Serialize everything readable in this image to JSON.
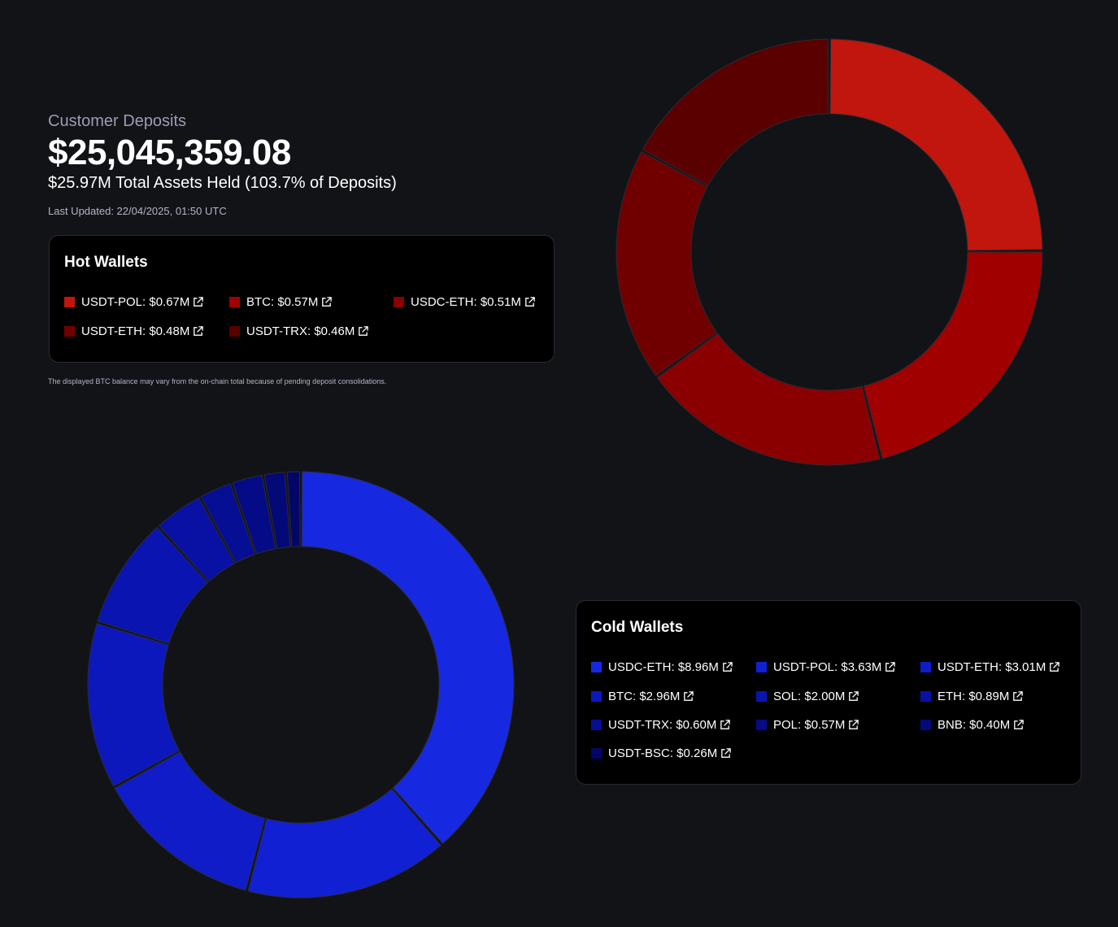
{
  "summary": {
    "subtitle": "Customer Deposits",
    "total": "$25,045,359.08",
    "assets_line": "$25.97M Total Assets Held (103.7% of Deposits)",
    "last_updated": "Last Updated: 22/04/2025, 01:50 UTC"
  },
  "footnote": "The displayed BTC balance may vary from the on-chain total because of pending deposit consolidations.",
  "hot_wallets": {
    "title": "Hot Wallets",
    "items": [
      {
        "label": "USDT-POL: $0.67M",
        "color": "#c0160d"
      },
      {
        "label": "BTC: $0.57M",
        "color": "#a00000"
      },
      {
        "label": "USDC-ETH: $0.51M",
        "color": "#8a0000"
      },
      {
        "label": "USDT-ETH: $0.48M",
        "color": "#700000"
      },
      {
        "label": "USDT-TRX: $0.46M",
        "color": "#5a0000"
      }
    ]
  },
  "cold_wallets": {
    "title": "Cold Wallets",
    "items": [
      {
        "label": "USDC-ETH: $8.96M",
        "color": "#1729e0"
      },
      {
        "label": "USDT-POL: $3.63M",
        "color": "#1220d4"
      },
      {
        "label": "USDT-ETH: $3.01M",
        "color": "#0f1cc8"
      },
      {
        "label": "BTC: $2.96M",
        "color": "#0c18bc"
      },
      {
        "label": "SOL: $2.00M",
        "color": "#0a14b0"
      },
      {
        "label": "ETH: $0.89M",
        "color": "#0811a3"
      },
      {
        "label": "USDT-TRX: $0.60M",
        "color": "#060e94"
      },
      {
        "label": "POL: $0.57M",
        "color": "#050b86"
      },
      {
        "label": "BNB: $0.40M",
        "color": "#040978"
      },
      {
        "label": "USDT-BSC: $0.26M",
        "color": "#030668"
      }
    ]
  },
  "chart_data": [
    {
      "type": "pie",
      "variant": "donut",
      "categories": [
        "USDT-POL",
        "BTC",
        "USDC-ETH",
        "USDT-ETH",
        "USDT-TRX"
      ],
      "values": [
        0.67,
        0.57,
        0.51,
        0.48,
        0.46
      ],
      "colors": [
        "#c0160d",
        "#a00000",
        "#8a0000",
        "#700000",
        "#5a0000"
      ]
    },
    {
      "type": "pie",
      "variant": "donut",
      "categories": [
        "USDC-ETH",
        "USDT-POL",
        "USDT-ETH",
        "BTC",
        "SOL",
        "ETH",
        "USDT-TRX",
        "POL",
        "BNB",
        "USDT-BSC"
      ],
      "values": [
        8.96,
        3.63,
        3.01,
        2.96,
        2.0,
        0.89,
        0.6,
        0.57,
        0.4,
        0.26
      ],
      "colors": [
        "#1729e0",
        "#1220d4",
        "#0f1cc8",
        "#0c18bc",
        "#0a14b0",
        "#0811a3",
        "#060e94",
        "#050b86",
        "#040978",
        "#030668"
      ]
    }
  ]
}
